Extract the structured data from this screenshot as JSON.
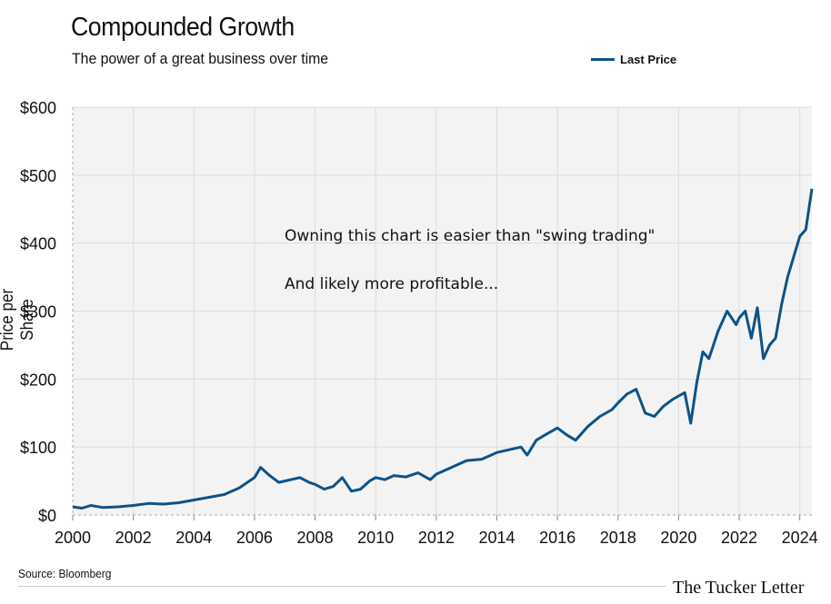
{
  "header": {
    "title": "Compounded Growth",
    "subtitle": "The power of a great business over time"
  },
  "footer": {
    "source": "Source: Bloomberg",
    "brand": "The Tucker Letter"
  },
  "colors": {
    "line": "#0e5289",
    "plot_bg": "#f3f3f3",
    "grid": "#dcdcdc"
  },
  "chart_data": {
    "type": "line",
    "title": "Compounded Growth",
    "subtitle": "The power of a great business over time",
    "ylabel": "Price per Share",
    "xlabel": "",
    "legend": {
      "entries": [
        "Last Price"
      ],
      "placement": "top-right"
    },
    "xlim": [
      2000,
      2024.4
    ],
    "ylim": [
      0,
      600
    ],
    "grid": true,
    "x_ticks": [
      "2000",
      "2002",
      "2004",
      "2006",
      "2008",
      "2010",
      "2012",
      "2014",
      "2016",
      "2018",
      "2020",
      "2022",
      "2024"
    ],
    "y_ticks": [
      "$0",
      "$100",
      "$200",
      "$300",
      "$400",
      "$500",
      "$600"
    ],
    "annotations": [
      "Owning this chart is easier than \"swing trading\"",
      "And likely more profitable..."
    ],
    "series": [
      {
        "name": "Last Price",
        "x": [
          2000.0,
          2000.3,
          2000.6,
          2001.0,
          2001.5,
          2002.0,
          2002.5,
          2003.0,
          2003.5,
          2004.0,
          2004.5,
          2005.0,
          2005.5,
          2006.0,
          2006.2,
          2006.5,
          2006.8,
          2007.0,
          2007.5,
          2007.8,
          2008.0,
          2008.3,
          2008.6,
          2008.9,
          2009.2,
          2009.5,
          2009.8,
          2010.0,
          2010.3,
          2010.6,
          2011.0,
          2011.4,
          2011.8,
          2012.0,
          2012.5,
          2013.0,
          2013.5,
          2014.0,
          2014.4,
          2014.8,
          2015.0,
          2015.3,
          2015.6,
          2016.0,
          2016.3,
          2016.6,
          2017.0,
          2017.4,
          2017.8,
          2018.0,
          2018.3,
          2018.6,
          2018.9,
          2019.2,
          2019.5,
          2019.8,
          2020.0,
          2020.2,
          2020.4,
          2020.6,
          2020.8,
          2021.0,
          2021.3,
          2021.6,
          2021.9,
          2022.0,
          2022.2,
          2022.4,
          2022.6,
          2022.8,
          2023.0,
          2023.2,
          2023.4,
          2023.6,
          2023.8,
          2024.0,
          2024.2,
          2024.4
        ],
        "values": [
          12,
          10,
          14,
          11,
          12,
          14,
          17,
          16,
          18,
          22,
          26,
          30,
          40,
          55,
          70,
          58,
          48,
          50,
          55,
          48,
          45,
          38,
          42,
          55,
          35,
          38,
          50,
          55,
          52,
          58,
          56,
          62,
          52,
          60,
          70,
          80,
          82,
          92,
          96,
          100,
          88,
          110,
          118,
          128,
          118,
          110,
          130,
          145,
          155,
          165,
          178,
          185,
          150,
          145,
          160,
          170,
          175,
          180,
          135,
          195,
          240,
          230,
          270,
          300,
          280,
          290,
          300,
          260,
          305,
          230,
          250,
          260,
          310,
          350,
          380,
          410,
          420,
          480
        ]
      }
    ]
  }
}
